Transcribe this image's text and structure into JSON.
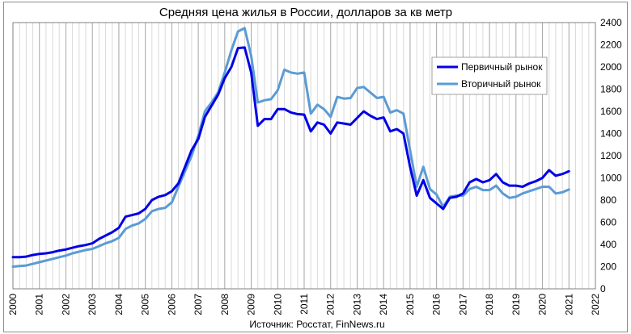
{
  "chart_data": {
    "type": "line",
    "title": "Средняя цена жилья в России, долларов за кв метр",
    "source": "Источник: Росстат, FinNews.ru",
    "xlabel": "",
    "ylabel": "",
    "xlim": [
      2000,
      2022
    ],
    "ylim": [
      0,
      2400
    ],
    "ystep": 200,
    "grid": "vertical",
    "legend_position": "top-right",
    "x_tick_labels": [
      "2000",
      "2001",
      "2002",
      "2003",
      "2004",
      "2005",
      "2006",
      "2007",
      "2008",
      "2009",
      "2010",
      "2011",
      "2012",
      "2013",
      "2014",
      "2015",
      "2016",
      "2017",
      "2018",
      "2019",
      "2020",
      "2021",
      "2022"
    ],
    "y_tick_labels": [
      "0",
      "200",
      "400",
      "600",
      "800",
      "1000",
      "1200",
      "1400",
      "1600",
      "1800",
      "2000",
      "2200",
      "2400"
    ],
    "series": [
      {
        "name": "Первичный рынок",
        "color": "#0000e6",
        "points": [
          [
            2000.0,
            285
          ],
          [
            2000.25,
            285
          ],
          [
            2000.5,
            290
          ],
          [
            2000.75,
            305
          ],
          [
            2001.0,
            315
          ],
          [
            2001.25,
            320
          ],
          [
            2001.5,
            330
          ],
          [
            2001.75,
            345
          ],
          [
            2002.0,
            355
          ],
          [
            2002.25,
            370
          ],
          [
            2002.5,
            385
          ],
          [
            2002.75,
            395
          ],
          [
            2003.0,
            410
          ],
          [
            2003.25,
            450
          ],
          [
            2003.5,
            480
          ],
          [
            2003.75,
            510
          ],
          [
            2004.0,
            550
          ],
          [
            2004.25,
            650
          ],
          [
            2004.5,
            665
          ],
          [
            2004.75,
            680
          ],
          [
            2005.0,
            720
          ],
          [
            2005.25,
            800
          ],
          [
            2005.5,
            830
          ],
          [
            2005.75,
            845
          ],
          [
            2006.0,
            880
          ],
          [
            2006.25,
            950
          ],
          [
            2006.5,
            1100
          ],
          [
            2006.75,
            1250
          ],
          [
            2007.0,
            1350
          ],
          [
            2007.25,
            1550
          ],
          [
            2007.5,
            1650
          ],
          [
            2007.75,
            1750
          ],
          [
            2008.0,
            1900
          ],
          [
            2008.25,
            2000
          ],
          [
            2008.5,
            2170
          ],
          [
            2008.75,
            2175
          ],
          [
            2009.0,
            1950
          ],
          [
            2009.25,
            1470
          ],
          [
            2009.5,
            1530
          ],
          [
            2009.75,
            1530
          ],
          [
            2010.0,
            1620
          ],
          [
            2010.25,
            1620
          ],
          [
            2010.5,
            1590
          ],
          [
            2010.75,
            1575
          ],
          [
            2011.0,
            1570
          ],
          [
            2011.25,
            1420
          ],
          [
            2011.5,
            1500
          ],
          [
            2011.75,
            1480
          ],
          [
            2012.0,
            1400
          ],
          [
            2012.25,
            1500
          ],
          [
            2012.5,
            1490
          ],
          [
            2012.75,
            1480
          ],
          [
            2013.0,
            1540
          ],
          [
            2013.25,
            1600
          ],
          [
            2013.5,
            1560
          ],
          [
            2013.75,
            1530
          ],
          [
            2014.0,
            1545
          ],
          [
            2014.25,
            1420
          ],
          [
            2014.5,
            1440
          ],
          [
            2014.75,
            1400
          ],
          [
            2015.0,
            1100
          ],
          [
            2015.25,
            840
          ],
          [
            2015.5,
            980
          ],
          [
            2015.75,
            820
          ],
          [
            2016.0,
            770
          ],
          [
            2016.25,
            720
          ],
          [
            2016.5,
            820
          ],
          [
            2016.75,
            830
          ],
          [
            2017.0,
            860
          ],
          [
            2017.25,
            960
          ],
          [
            2017.5,
            990
          ],
          [
            2017.75,
            960
          ],
          [
            2018.0,
            980
          ],
          [
            2018.25,
            1035
          ],
          [
            2018.5,
            960
          ],
          [
            2018.75,
            930
          ],
          [
            2019.0,
            930
          ],
          [
            2019.25,
            920
          ],
          [
            2019.5,
            950
          ],
          [
            2019.75,
            970
          ],
          [
            2020.0,
            1000
          ],
          [
            2020.25,
            1070
          ],
          [
            2020.5,
            1020
          ],
          [
            2020.75,
            1035
          ],
          [
            2021.0,
            1060
          ]
        ]
      },
      {
        "name": "Вторичный рынок",
        "color": "#5b9bd5",
        "points": [
          [
            2000.0,
            200
          ],
          [
            2000.25,
            205
          ],
          [
            2000.5,
            210
          ],
          [
            2000.75,
            225
          ],
          [
            2001.0,
            240
          ],
          [
            2001.25,
            255
          ],
          [
            2001.5,
            270
          ],
          [
            2001.75,
            285
          ],
          [
            2002.0,
            300
          ],
          [
            2002.25,
            320
          ],
          [
            2002.5,
            335
          ],
          [
            2002.75,
            350
          ],
          [
            2003.0,
            360
          ],
          [
            2003.25,
            385
          ],
          [
            2003.5,
            410
          ],
          [
            2003.75,
            430
          ],
          [
            2004.0,
            460
          ],
          [
            2004.25,
            540
          ],
          [
            2004.5,
            570
          ],
          [
            2004.75,
            590
          ],
          [
            2005.0,
            630
          ],
          [
            2005.25,
            700
          ],
          [
            2005.5,
            720
          ],
          [
            2005.75,
            730
          ],
          [
            2006.0,
            780
          ],
          [
            2006.25,
            920
          ],
          [
            2006.5,
            1060
          ],
          [
            2006.75,
            1200
          ],
          [
            2007.0,
            1380
          ],
          [
            2007.25,
            1600
          ],
          [
            2007.5,
            1680
          ],
          [
            2007.75,
            1770
          ],
          [
            2008.0,
            1950
          ],
          [
            2008.25,
            2150
          ],
          [
            2008.5,
            2320
          ],
          [
            2008.75,
            2350
          ],
          [
            2009.0,
            2100
          ],
          [
            2009.25,
            1680
          ],
          [
            2009.5,
            1700
          ],
          [
            2009.75,
            1710
          ],
          [
            2010.0,
            1790
          ],
          [
            2010.25,
            1975
          ],
          [
            2010.5,
            1950
          ],
          [
            2010.75,
            1940
          ],
          [
            2011.0,
            1950
          ],
          [
            2011.25,
            1580
          ],
          [
            2011.5,
            1660
          ],
          [
            2011.75,
            1620
          ],
          [
            2012.0,
            1550
          ],
          [
            2012.25,
            1730
          ],
          [
            2012.5,
            1715
          ],
          [
            2012.75,
            1720
          ],
          [
            2013.0,
            1810
          ],
          [
            2013.25,
            1820
          ],
          [
            2013.5,
            1770
          ],
          [
            2013.75,
            1720
          ],
          [
            2014.0,
            1730
          ],
          [
            2014.25,
            1590
          ],
          [
            2014.5,
            1610
          ],
          [
            2014.75,
            1580
          ],
          [
            2015.0,
            1250
          ],
          [
            2015.25,
            920
          ],
          [
            2015.5,
            1100
          ],
          [
            2015.75,
            900
          ],
          [
            2016.0,
            850
          ],
          [
            2016.25,
            740
          ],
          [
            2016.5,
            830
          ],
          [
            2016.75,
            840
          ],
          [
            2017.0,
            840
          ],
          [
            2017.25,
            900
          ],
          [
            2017.5,
            920
          ],
          [
            2017.75,
            890
          ],
          [
            2018.0,
            890
          ],
          [
            2018.25,
            930
          ],
          [
            2018.5,
            860
          ],
          [
            2018.75,
            820
          ],
          [
            2019.0,
            830
          ],
          [
            2019.25,
            860
          ],
          [
            2019.5,
            880
          ],
          [
            2019.75,
            900
          ],
          [
            2020.0,
            920
          ],
          [
            2020.25,
            920
          ],
          [
            2020.5,
            860
          ],
          [
            2020.75,
            870
          ],
          [
            2021.0,
            895
          ]
        ]
      }
    ]
  }
}
